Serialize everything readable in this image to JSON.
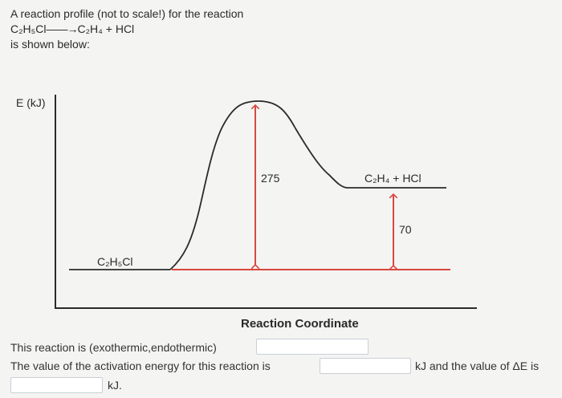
{
  "intro": {
    "line1": "A reaction profile (not to scale!) for the reaction",
    "reactant": "C₂H₅Cl",
    "products": "C₂H₄ + HCl",
    "line3": "is shown below:"
  },
  "diagram": {
    "y_axis_label": "E (kJ)",
    "x_axis_label": "Reaction Coordinate",
    "reactant_label": "C₂H₅Cl",
    "product_label": "C₂H₄ + HCl",
    "activation_energy_value": "275",
    "delta_e_value": "70",
    "colors": {
      "curve": "#2b2b2b",
      "arrows": "#d9473e",
      "axes": "#2b2b2b"
    }
  },
  "questions": {
    "q1_text": "This reaction is (exothermic,endothermic)",
    "q2_text_before": "The value of the activation energy for this reaction is",
    "q2_text_after": "kJ and the value of ΔE is",
    "q2_unit": "kJ."
  }
}
